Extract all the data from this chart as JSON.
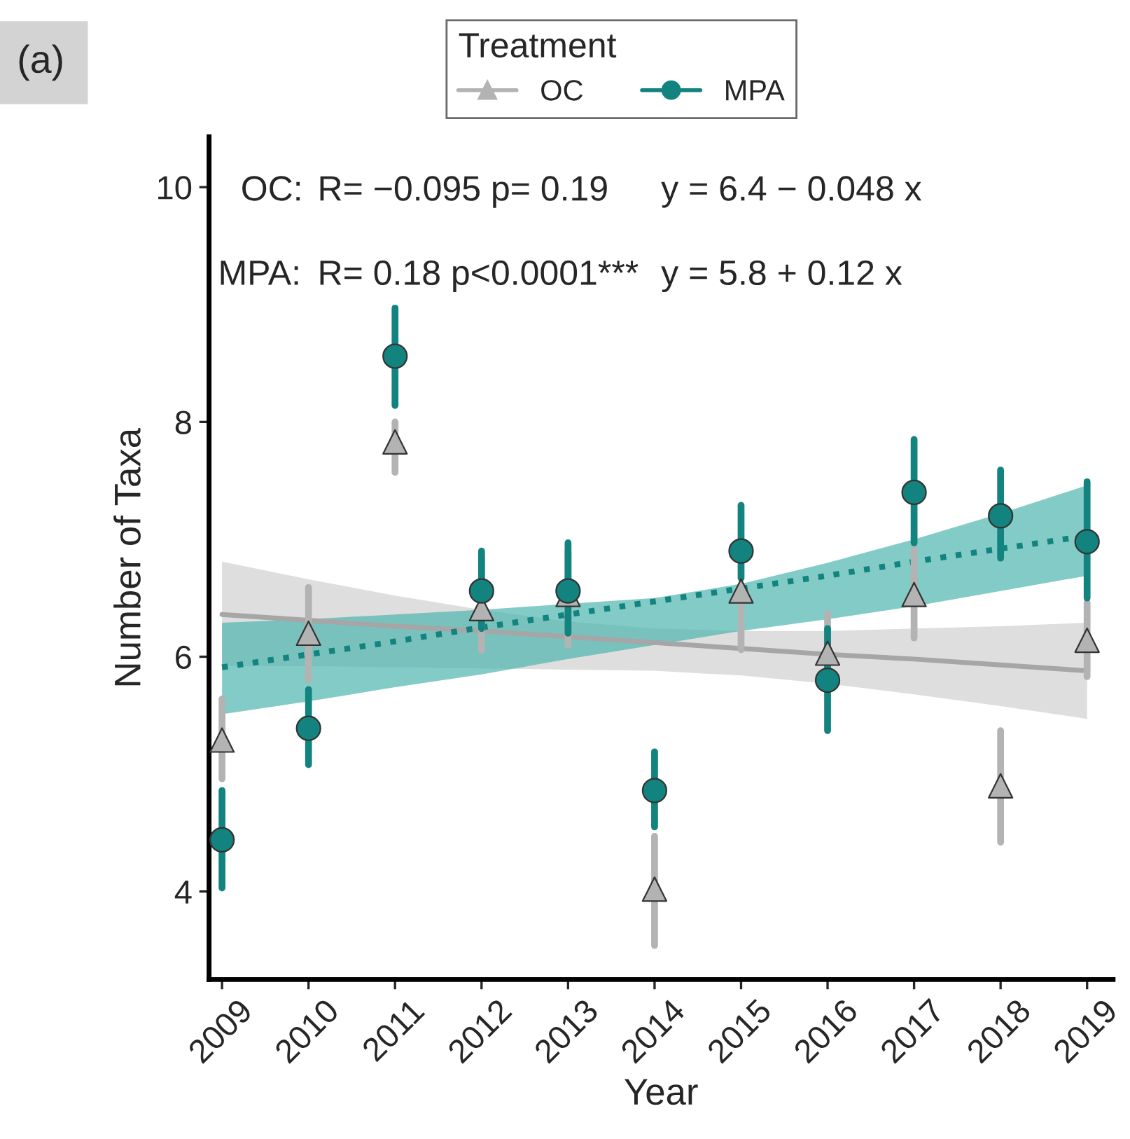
{
  "chart_data": {
    "type": "scatter",
    "xlabel": "Year",
    "ylabel": "Number of Taxa",
    "legend_title": "Treatment",
    "legend": "top",
    "categories": [
      "2009",
      "2010",
      "2011",
      "2012",
      "2013",
      "2014",
      "2015",
      "2016",
      "2017",
      "2018",
      "2019"
    ],
    "ylim": [
      3.25,
      10.43
    ],
    "yticks": [
      4,
      6,
      8,
      10
    ],
    "grid": false,
    "series": [
      {
        "name": "OC",
        "marker": "triangle",
        "color": "#b3b3b3",
        "values": [
          5.29,
          6.2,
          7.83,
          6.41,
          6.53,
          4.02,
          6.56,
          6.03,
          6.53,
          4.9,
          6.14
        ],
        "errors": [
          [
            4.96,
            5.64
          ],
          [
            5.8,
            6.59
          ],
          [
            7.57,
            8.0
          ],
          [
            6.05,
            6.86
          ],
          [
            6.1,
            6.9
          ],
          [
            3.54,
            4.47
          ],
          [
            6.06,
            6.56
          ],
          [
            5.71,
            6.37
          ],
          [
            6.16,
            6.92
          ],
          [
            4.42,
            5.37
          ],
          [
            5.83,
            6.46
          ]
        ]
      },
      {
        "name": "MPA",
        "marker": "circle",
        "color": "#12837e",
        "values": [
          4.44,
          5.39,
          8.56,
          6.56,
          6.56,
          4.86,
          6.9,
          5.8,
          7.4,
          7.2,
          6.98
        ],
        "errors": [
          [
            4.03,
            4.86
          ],
          [
            5.08,
            5.72
          ],
          [
            8.14,
            8.97
          ],
          [
            6.24,
            6.9
          ],
          [
            6.2,
            6.97
          ],
          [
            4.55,
            5.19
          ],
          [
            6.67,
            7.29
          ],
          [
            5.37,
            6.24
          ],
          [
            6.97,
            7.85
          ],
          [
            6.84,
            7.59
          ],
          [
            6.5,
            7.49
          ]
        ]
      },
      {
        "type": "line",
        "line_style": "solid",
        "color": "#a6a6a6",
        "values": [
          6.36,
          6.31,
          6.26,
          6.22,
          6.17,
          6.12,
          6.07,
          6.02,
          5.98,
          5.93,
          5.88
        ],
        "lower": [
          5.92,
          5.92,
          5.91,
          5.9,
          5.89,
          5.88,
          5.84,
          5.77,
          5.68,
          5.58,
          5.47
        ],
        "upper": [
          6.81,
          6.66,
          6.52,
          6.4,
          6.3,
          6.24,
          6.22,
          6.22,
          6.24,
          6.26,
          6.29
        ]
      },
      {
        "type": "line",
        "line_style": "dotted",
        "color": "#12837e",
        "values": [
          5.91,
          6.02,
          6.13,
          6.25,
          6.36,
          6.47,
          6.58,
          6.69,
          6.81,
          6.92,
          7.03
        ],
        "lower": [
          5.51,
          5.62,
          5.74,
          5.85,
          5.98,
          6.1,
          6.22,
          6.32,
          6.43,
          6.56,
          6.69
        ],
        "upper": [
          6.29,
          6.32,
          6.36,
          6.4,
          6.45,
          6.5,
          6.62,
          6.8,
          7.0,
          7.22,
          7.46
        ]
      }
    ],
    "annotations": [
      "(a)",
      "OC:",
      "R= −0.095 p= 0.19",
      "y = 6.4 − 0.048 x",
      "MPA:",
      "R= 0.18 p<0.0001***",
      "y = 5.8 + 0.12 x"
    ]
  }
}
